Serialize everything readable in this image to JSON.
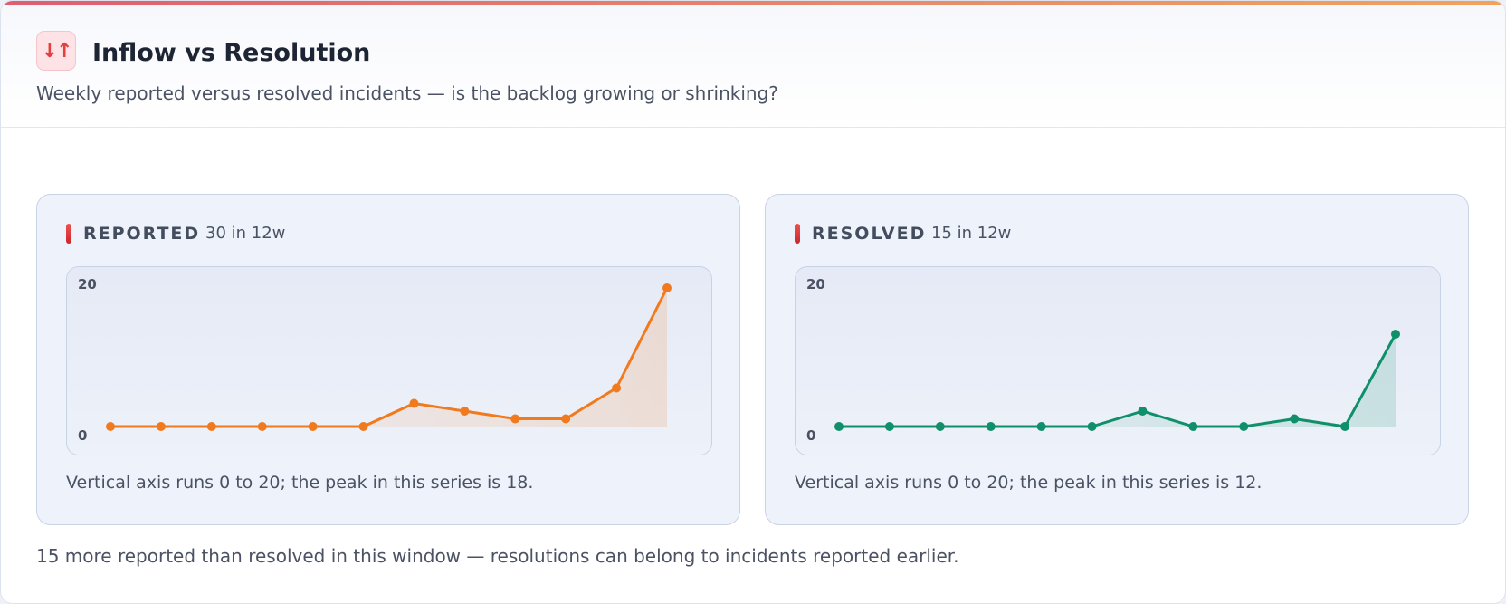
{
  "header": {
    "icon": "arrows-up-down-icon",
    "icon_glyph": "↓↑",
    "title": "Inflow vs Resolution",
    "subtitle": "Weekly reported versus resolved incidents — is the backlog growing or shrinking?"
  },
  "panels": [
    {
      "label": "REPORTED",
      "count": "30 in 12w",
      "note": "Vertical axis runs 0 to 20; the peak in this series is 18."
    },
    {
      "label": "RESOLVED",
      "count": "15 in 12w",
      "note": "Vertical axis runs 0 to 20; the peak in this series is 12."
    }
  ],
  "footer": {
    "note": "15 more reported than resolved in this window — resolutions can belong to incidents reported earlier."
  },
  "colors": {
    "reported": "#f07a1d",
    "resolved": "#0f8f6a",
    "accent": "#e2403f"
  },
  "chart_data": [
    {
      "type": "line",
      "title": "",
      "xlabel": "",
      "ylabel": "",
      "ylim": [
        0,
        20
      ],
      "y_ticks": [
        "20",
        "0"
      ],
      "grid": false,
      "series": [
        {
          "name": "REPORTED",
          "x": [
            1,
            2,
            3,
            4,
            5,
            6,
            7,
            8,
            9,
            10,
            11,
            12
          ],
          "values": [
            0,
            0,
            0,
            0,
            0,
            0,
            3,
            2,
            1,
            1,
            5,
            18
          ]
        }
      ]
    },
    {
      "type": "line",
      "title": "",
      "xlabel": "",
      "ylabel": "",
      "ylim": [
        0,
        20
      ],
      "y_ticks": [
        "20",
        "0"
      ],
      "grid": false,
      "series": [
        {
          "name": "RESOLVED",
          "x": [
            1,
            2,
            3,
            4,
            5,
            6,
            7,
            8,
            9,
            10,
            11,
            12
          ],
          "values": [
            0,
            0,
            0,
            0,
            0,
            0,
            2,
            0,
            0,
            1,
            0,
            12
          ]
        }
      ]
    }
  ]
}
